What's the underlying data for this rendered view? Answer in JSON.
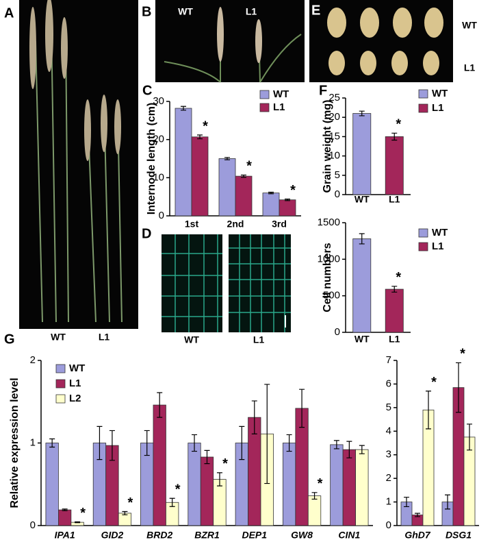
{
  "chart_data": [
    {
      "type": "bar",
      "panel": "C",
      "ylabel": "Internode length (cm)",
      "categories": [
        "1st",
        "2nd",
        "3rd"
      ],
      "ylim": [
        0,
        30
      ],
      "yticks": [
        0,
        10,
        20,
        30
      ],
      "series": [
        {
          "name": "WT",
          "color": "#9c9cdb",
          "values": [
            28.2,
            15,
            6
          ],
          "errors": [
            0.5,
            0.3,
            0.2
          ],
          "significance": [
            null,
            null,
            null
          ]
        },
        {
          "name": "L1",
          "color": "#a3265a",
          "values": [
            20.7,
            10.4,
            4.2
          ],
          "errors": [
            0.5,
            0.3,
            0.2
          ],
          "significance": [
            "*",
            "*",
            "*"
          ]
        }
      ]
    },
    {
      "type": "bar",
      "panel": "F",
      "ylabel": "Grain weight (mg)",
      "categories": [
        "WT",
        "L1"
      ],
      "ylim": [
        0,
        25
      ],
      "yticks": [
        0,
        5,
        10,
        15,
        20,
        25
      ],
      "series": [
        {
          "name": "WT",
          "color": "#9c9cdb",
          "values": [
            21,
            null
          ],
          "errors": [
            0.6,
            null
          ],
          "significance": [
            null,
            null
          ]
        },
        {
          "name": "L1",
          "color": "#a3265a",
          "values": [
            null,
            15
          ],
          "errors": [
            null,
            0.9
          ],
          "significance": [
            null,
            "*"
          ]
        }
      ]
    },
    {
      "type": "bar",
      "ylabel": "Cell numbers",
      "categories": [
        "WT",
        "L1"
      ],
      "ylim": [
        0,
        1500
      ],
      "yticks": [
        0,
        500,
        1000,
        1500
      ],
      "series": [
        {
          "name": "WT",
          "color": "#9c9cdb",
          "values": [
            1280,
            null
          ],
          "errors": [
            70,
            null
          ],
          "significance": [
            null,
            null
          ]
        },
        {
          "name": "L1",
          "color": "#a3265a",
          "values": [
            null,
            590
          ],
          "errors": [
            null,
            40
          ],
          "significance": [
            null,
            "*"
          ]
        }
      ]
    },
    {
      "type": "bar",
      "panel": "G",
      "ylabel": "Relative expression level",
      "categories": [
        "IPA1",
        "GID2",
        "BRD2",
        "BZR1",
        "DEP1",
        "GW8",
        "CIN1"
      ],
      "ylim": [
        0,
        2
      ],
      "yticks": [
        0,
        1,
        2
      ],
      "series": [
        {
          "name": "WT",
          "color": "#9c9cdb",
          "values": [
            1,
            1,
            1,
            1,
            1,
            1,
            0.98
          ],
          "errors": [
            0.05,
            0.2,
            0.15,
            0.1,
            0.2,
            0.1,
            0.05
          ],
          "significance": [
            null,
            null,
            null,
            null,
            null,
            null,
            null
          ]
        },
        {
          "name": "L1",
          "color": "#a3265a",
          "values": [
            0.19,
            0.97,
            1.46,
            0.83,
            1.31,
            1.42,
            0.92
          ],
          "errors": [
            0.01,
            0.18,
            0.15,
            0.08,
            0.2,
            0.23,
            0.1
          ],
          "significance": [
            null,
            null,
            null,
            null,
            null,
            null,
            null
          ]
        },
        {
          "name": "L2",
          "color": "#ffffcc",
          "values": [
            0.04,
            0.15,
            0.28,
            0.56,
            1.11,
            0.36,
            0.92
          ],
          "errors": [
            0.005,
            0.02,
            0.05,
            0.08,
            0.6,
            0.04,
            0.05
          ],
          "significance": [
            "*",
            "*",
            "*",
            "*",
            null,
            "*",
            null
          ]
        }
      ]
    },
    {
      "type": "bar",
      "categories": [
        "GhD7",
        "DSG1"
      ],
      "ylim": [
        0,
        7
      ],
      "yticks": [
        0,
        1,
        2,
        3,
        4,
        5,
        6,
        7
      ],
      "series": [
        {
          "name": "WT",
          "color": "#9c9cdb",
          "values": [
            1,
            1
          ],
          "errors": [
            0.2,
            0.3
          ],
          "significance": [
            null,
            null
          ]
        },
        {
          "name": "L1",
          "color": "#a3265a",
          "values": [
            0.45,
            5.85
          ],
          "errors": [
            0.07,
            1.05
          ],
          "significance": [
            null,
            "*"
          ]
        },
        {
          "name": "L2",
          "color": "#ffffcc",
          "values": [
            4.9,
            3.75
          ],
          "errors": [
            0.8,
            0.55
          ],
          "significance": [
            "*",
            null
          ]
        }
      ]
    }
  ],
  "photos": [
    {
      "panel": "A",
      "labels": [
        "WT",
        "L1"
      ]
    },
    {
      "panel": "B",
      "labels": [
        "WT",
        "L1"
      ]
    },
    {
      "panel": "D",
      "labels": [
        "WT",
        "L1"
      ]
    },
    {
      "panel": "E",
      "labels": [
        "WT",
        "L1"
      ]
    }
  ]
}
